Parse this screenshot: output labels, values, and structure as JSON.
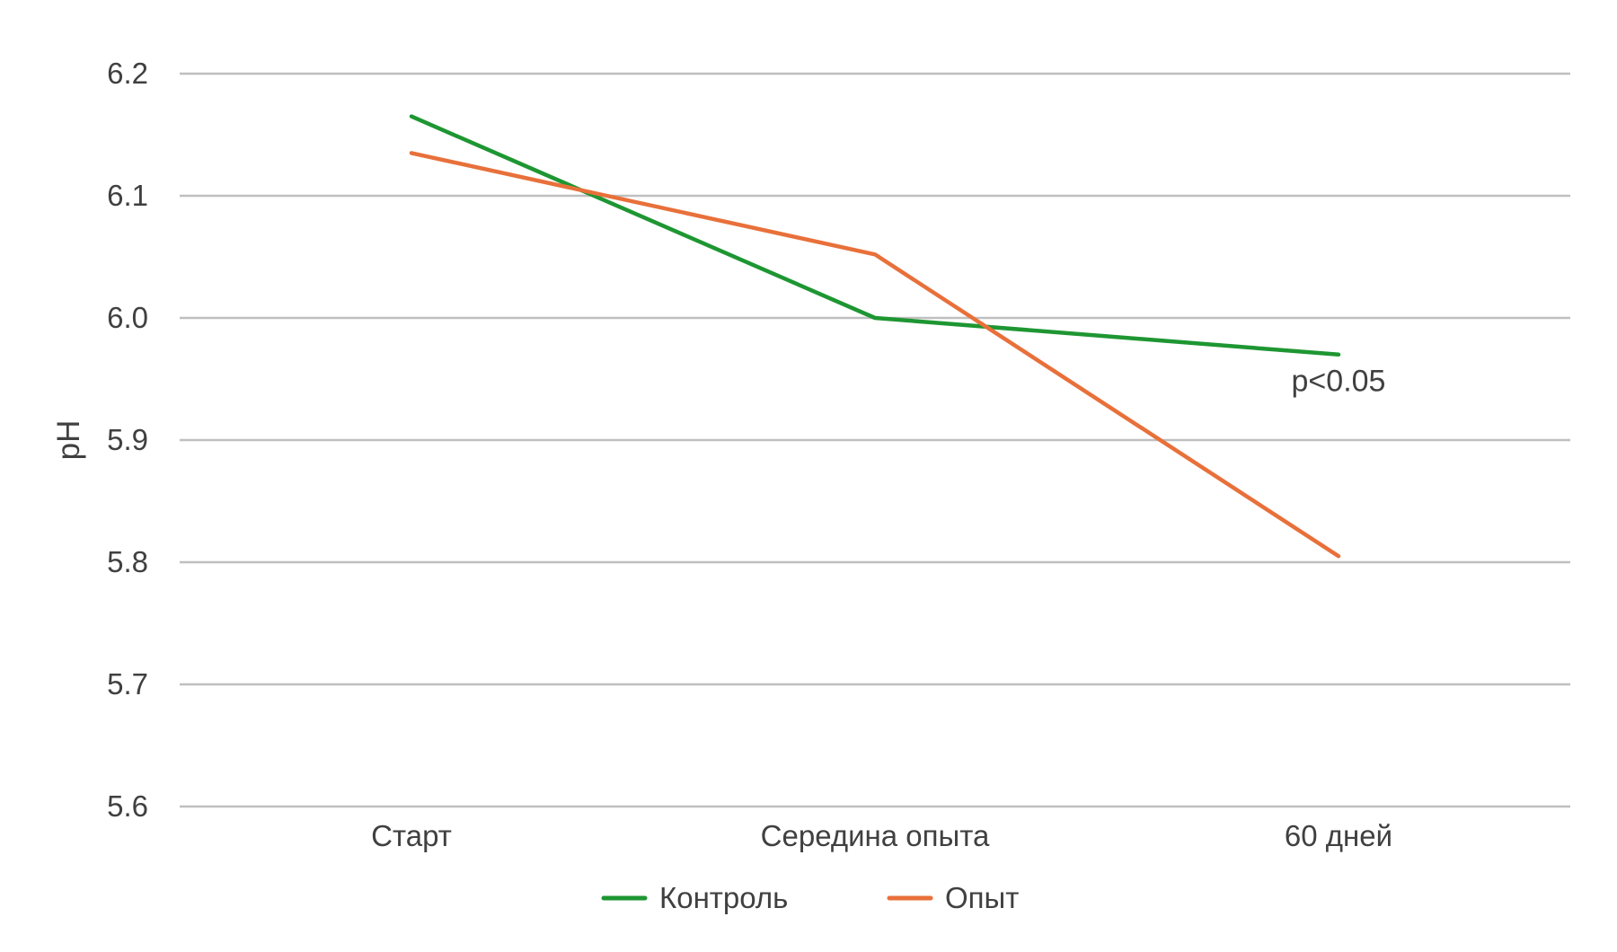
{
  "chart_data": {
    "type": "line",
    "title": "",
    "xlabel": "",
    "ylabel": "pH",
    "categories": [
      "Старт",
      "Середина опыта",
      "60 дней"
    ],
    "series": [
      {
        "name": "Контроль",
        "color": "#1e9632",
        "values": [
          6.165,
          6.0,
          5.97
        ]
      },
      {
        "name": "Опыт",
        "color": "#e8703a",
        "values": [
          6.135,
          6.052,
          5.805
        ]
      }
    ],
    "ylim": [
      5.6,
      6.2
    ],
    "yticks": [
      "5.6",
      "5.7",
      "5.8",
      "5.9",
      "6.0",
      "6.1",
      "6.2"
    ],
    "grid": true,
    "legend_position": "bottom",
    "annotations": [
      {
        "text": "p<0.05",
        "category": "60 дней",
        "y": 5.94
      }
    ]
  }
}
